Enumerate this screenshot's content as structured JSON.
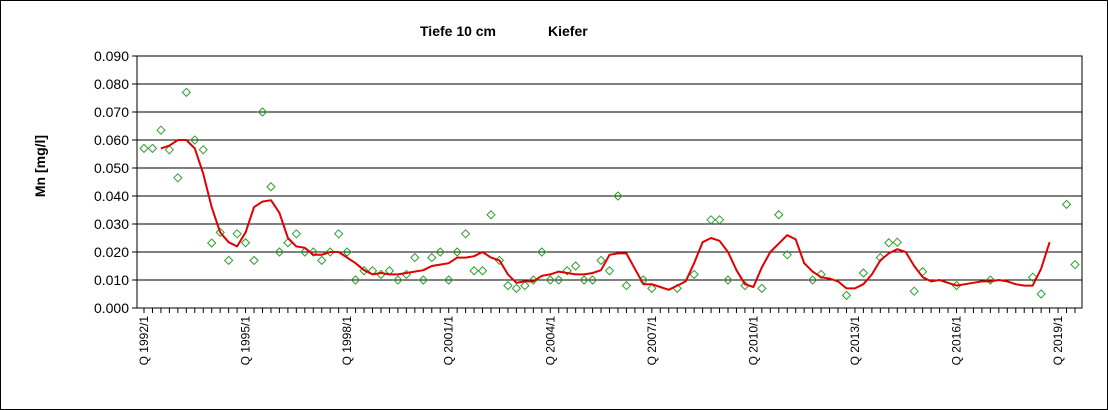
{
  "chart_data": {
    "type": "scatter+line",
    "title_left": "Tiefe  10 cm",
    "title_right": "Kiefer",
    "ylabel": "Mn [mg/l]",
    "xlabel": "",
    "ylim": [
      0,
      0.09
    ],
    "yticks": [
      "0.000",
      "0.010",
      "0.020",
      "0.030",
      "0.040",
      "0.050",
      "0.060",
      "0.070",
      "0.080",
      "0.090"
    ],
    "x_unit": "quarter index from Q 1992/1",
    "xlim": [
      0,
      110
    ],
    "xticks": [
      {
        "q": 0,
        "label": "Q 1992/1"
      },
      {
        "q": 12,
        "label": "Q 1995/1"
      },
      {
        "q": 24,
        "label": "Q 1998/1"
      },
      {
        "q": 36,
        "label": "Q 2001/1"
      },
      {
        "q": 48,
        "label": "Q 2004/1"
      },
      {
        "q": 60,
        "label": "Q 2007/1"
      },
      {
        "q": 72,
        "label": "Q 2010/1"
      },
      {
        "q": 84,
        "label": "Q 2013/1"
      },
      {
        "q": 96,
        "label": "Q 2016/1"
      },
      {
        "q": 108,
        "label": "Q 2019/1"
      }
    ],
    "grid": "horizontal",
    "colors": {
      "points": "#2ca02c",
      "line": "#e00000",
      "grid": "#000000"
    },
    "series": [
      {
        "kind": "points",
        "marker": "diamond-open",
        "points": [
          [
            0,
            0.057
          ],
          [
            1,
            0.057
          ],
          [
            2,
            0.0635
          ],
          [
            3,
            0.0565
          ],
          [
            4,
            0.0465
          ],
          [
            5,
            0.077
          ],
          [
            6,
            0.06
          ],
          [
            7,
            0.0565
          ],
          [
            8,
            0.0232
          ],
          [
            9,
            0.027
          ],
          [
            10,
            0.017
          ],
          [
            11,
            0.0265
          ],
          [
            12,
            0.0233
          ],
          [
            13,
            0.017
          ],
          [
            14,
            0.07
          ],
          [
            15,
            0.0433
          ],
          [
            16,
            0.02
          ],
          [
            17,
            0.0233
          ],
          [
            18,
            0.0265
          ],
          [
            19,
            0.02
          ],
          [
            20,
            0.02
          ],
          [
            21,
            0.017
          ],
          [
            22,
            0.02
          ],
          [
            23,
            0.0265
          ],
          [
            24,
            0.02
          ],
          [
            25,
            0.01
          ],
          [
            26,
            0.0133
          ],
          [
            27,
            0.0133
          ],
          [
            28,
            0.012
          ],
          [
            29,
            0.0133
          ],
          [
            30,
            0.01
          ],
          [
            31,
            0.012
          ],
          [
            32,
            0.018
          ],
          [
            33,
            0.01
          ],
          [
            34,
            0.018
          ],
          [
            35,
            0.02
          ],
          [
            36,
            0.01
          ],
          [
            37,
            0.02
          ],
          [
            38,
            0.0265
          ],
          [
            39,
            0.0133
          ],
          [
            40,
            0.0133
          ],
          [
            41,
            0.0333
          ],
          [
            42,
            0.017
          ],
          [
            43,
            0.008
          ],
          [
            44,
            0.007
          ],
          [
            45,
            0.008
          ],
          [
            46,
            0.01
          ],
          [
            47,
            0.02
          ],
          [
            48,
            0.01
          ],
          [
            49,
            0.01
          ],
          [
            50,
            0.0133
          ],
          [
            51,
            0.015
          ],
          [
            52,
            0.01
          ],
          [
            53,
            0.01
          ],
          [
            54,
            0.017
          ],
          [
            55,
            0.0133
          ],
          [
            56,
            0.04
          ],
          [
            57,
            0.008
          ],
          [
            59,
            0.01
          ],
          [
            60,
            0.007
          ],
          [
            63,
            0.007
          ],
          [
            65,
            0.012
          ],
          [
            67,
            0.0315
          ],
          [
            68,
            0.0315
          ],
          [
            69,
            0.01
          ],
          [
            71,
            0.008
          ],
          [
            73,
            0.007
          ],
          [
            75,
            0.0333
          ],
          [
            76,
            0.019
          ],
          [
            79,
            0.01
          ],
          [
            80,
            0.012
          ],
          [
            83,
            0.0045
          ],
          [
            85,
            0.0125
          ],
          [
            87,
            0.018
          ],
          [
            88,
            0.0233
          ],
          [
            89,
            0.0235
          ],
          [
            91,
            0.006
          ],
          [
            92,
            0.013
          ],
          [
            96,
            0.008
          ],
          [
            100,
            0.01
          ],
          [
            105,
            0.011
          ],
          [
            106,
            0.005
          ],
          [
            109,
            0.037
          ],
          [
            110,
            0.0155
          ]
        ]
      },
      {
        "kind": "line",
        "points": [
          [
            2,
            0.057
          ],
          [
            3,
            0.058
          ],
          [
            4,
            0.06
          ],
          [
            5,
            0.06
          ],
          [
            6,
            0.057
          ],
          [
            7,
            0.048
          ],
          [
            8,
            0.036
          ],
          [
            9,
            0.027
          ],
          [
            10,
            0.0235
          ],
          [
            11,
            0.022
          ],
          [
            12,
            0.027
          ],
          [
            13,
            0.036
          ],
          [
            14,
            0.038
          ],
          [
            15,
            0.0385
          ],
          [
            16,
            0.034
          ],
          [
            17,
            0.025
          ],
          [
            18,
            0.022
          ],
          [
            19,
            0.0215
          ],
          [
            20,
            0.019
          ],
          [
            21,
            0.019
          ],
          [
            22,
            0.02
          ],
          [
            23,
            0.02
          ],
          [
            24,
            0.018
          ],
          [
            25,
            0.016
          ],
          [
            26,
            0.0135
          ],
          [
            27,
            0.012
          ],
          [
            28,
            0.0125
          ],
          [
            29,
            0.012
          ],
          [
            30,
            0.012
          ],
          [
            31,
            0.0125
          ],
          [
            32,
            0.013
          ],
          [
            33,
            0.0135
          ],
          [
            34,
            0.015
          ],
          [
            35,
            0.0155
          ],
          [
            36,
            0.016
          ],
          [
            37,
            0.018
          ],
          [
            38,
            0.018
          ],
          [
            39,
            0.0185
          ],
          [
            40,
            0.02
          ],
          [
            41,
            0.018
          ],
          [
            42,
            0.017
          ],
          [
            43,
            0.012
          ],
          [
            44,
            0.009
          ],
          [
            45,
            0.0095
          ],
          [
            46,
            0.0095
          ],
          [
            47,
            0.0115
          ],
          [
            48,
            0.012
          ],
          [
            49,
            0.013
          ],
          [
            50,
            0.0125
          ],
          [
            51,
            0.012
          ],
          [
            52,
            0.012
          ],
          [
            53,
            0.0125
          ],
          [
            54,
            0.0135
          ],
          [
            55,
            0.019
          ],
          [
            56,
            0.0195
          ],
          [
            57,
            0.0195
          ],
          [
            58,
            0.014
          ],
          [
            59,
            0.0085
          ],
          [
            60,
            0.0085
          ],
          [
            61,
            0.0075
          ],
          [
            62,
            0.0065
          ],
          [
            63,
            0.008
          ],
          [
            64,
            0.0095
          ],
          [
            65,
            0.016
          ],
          [
            66,
            0.0235
          ],
          [
            67,
            0.025
          ],
          [
            68,
            0.024
          ],
          [
            69,
            0.02
          ],
          [
            70,
            0.0135
          ],
          [
            71,
            0.0085
          ],
          [
            72,
            0.0075
          ],
          [
            73,
            0.0145
          ],
          [
            74,
            0.02
          ],
          [
            75,
            0.023
          ],
          [
            76,
            0.026
          ],
          [
            77,
            0.0245
          ],
          [
            78,
            0.016
          ],
          [
            79,
            0.013
          ],
          [
            80,
            0.011
          ],
          [
            81,
            0.0105
          ],
          [
            82,
            0.0095
          ],
          [
            83,
            0.007
          ],
          [
            84,
            0.007
          ],
          [
            85,
            0.0085
          ],
          [
            86,
            0.012
          ],
          [
            87,
            0.017
          ],
          [
            88,
            0.0195
          ],
          [
            89,
            0.021
          ],
          [
            90,
            0.02
          ],
          [
            91,
            0.015
          ],
          [
            92,
            0.011
          ],
          [
            93,
            0.0095
          ],
          [
            94,
            0.01
          ],
          [
            95,
            0.009
          ],
          [
            96,
            0.008
          ],
          [
            97,
            0.0085
          ],
          [
            98,
            0.009
          ],
          [
            99,
            0.0095
          ],
          [
            100,
            0.0095
          ],
          [
            101,
            0.01
          ],
          [
            102,
            0.0095
          ],
          [
            103,
            0.0085
          ],
          [
            104,
            0.008
          ],
          [
            105,
            0.008
          ],
          [
            106,
            0.014
          ],
          [
            107,
            0.0235
          ]
        ]
      }
    ]
  }
}
